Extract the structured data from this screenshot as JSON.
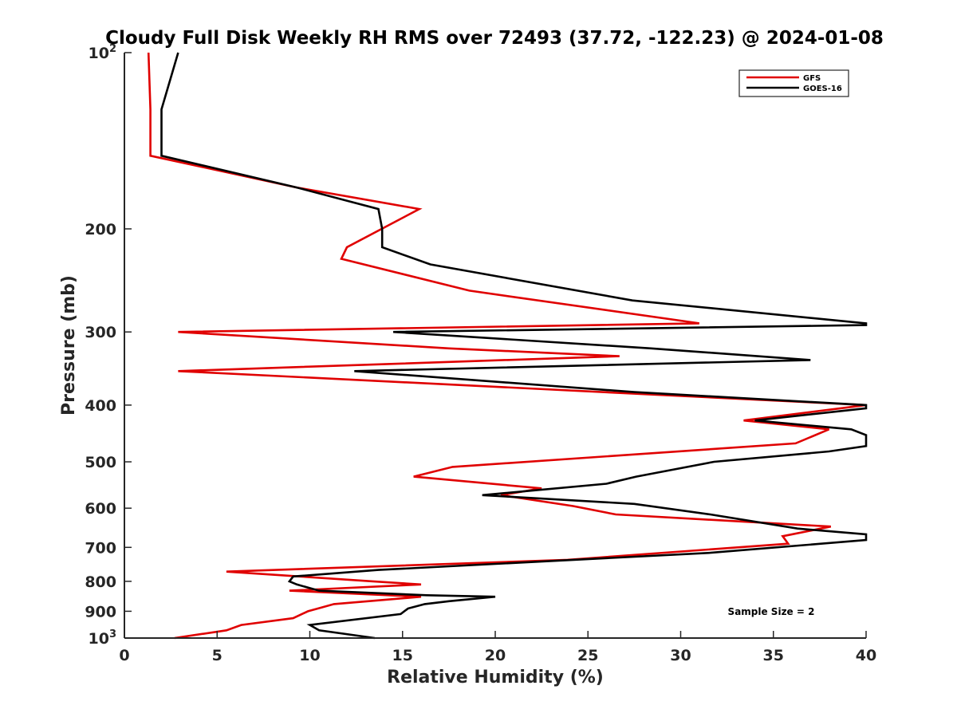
{
  "chart_data": {
    "type": "line",
    "title": "Cloudy Full Disk Weekly RH RMS over 72493 (37.72, -122.23) @ 2024-01-08",
    "xlabel": "Relative Humidity (%)",
    "ylabel": "Pressure (mb)",
    "xlim": [
      0,
      40
    ],
    "ylim": [
      100,
      1000
    ],
    "y_scale": "log",
    "y_reversed": true,
    "grid": false,
    "legend_position": "top-right",
    "x_ticks": [
      "0",
      "5",
      "10",
      "15",
      "20",
      "25",
      "30",
      "35",
      "40"
    ],
    "y_ticks": [
      {
        "value": 100,
        "base": "10",
        "exp": "2"
      },
      {
        "value": 200,
        "label": "200"
      },
      {
        "value": 300,
        "label": "300"
      },
      {
        "value": 400,
        "label": "400"
      },
      {
        "value": 500,
        "label": "500"
      },
      {
        "value": 600,
        "label": "600"
      },
      {
        "value": 700,
        "label": "700"
      },
      {
        "value": 800,
        "label": "800"
      },
      {
        "value": 900,
        "label": "900"
      },
      {
        "value": 1000,
        "base": "10",
        "exp": "3"
      }
    ],
    "annotation": "Sample Size = 2",
    "series": [
      {
        "name": "GFS",
        "color": "#e00000",
        "points": [
          [
            1.3,
            100
          ],
          [
            1.4,
            125
          ],
          [
            1.4,
            150
          ],
          [
            9.3,
            170
          ],
          [
            15.9,
            185
          ],
          [
            12.0,
            215
          ],
          [
            11.7,
            225
          ],
          [
            18.6,
            255
          ],
          [
            31.0,
            290
          ],
          [
            2.9,
            300
          ],
          [
            17.5,
            320
          ],
          [
            26.7,
            330
          ],
          [
            2.9,
            350
          ],
          [
            40.0,
            400
          ],
          [
            33.4,
            425
          ],
          [
            38.0,
            440
          ],
          [
            36.2,
            465
          ],
          [
            17.7,
            510
          ],
          [
            15.6,
            530
          ],
          [
            22.5,
            555
          ],
          [
            20.3,
            570
          ],
          [
            24.2,
            595
          ],
          [
            26.5,
            615
          ],
          [
            38.1,
            645
          ],
          [
            35.5,
            670
          ],
          [
            35.8,
            690
          ],
          [
            23.9,
            735
          ],
          [
            5.5,
            770
          ],
          [
            13.4,
            800
          ],
          [
            16.0,
            810
          ],
          [
            8.9,
            830
          ],
          [
            16.0,
            850
          ],
          [
            11.3,
            875
          ],
          [
            9.9,
            900
          ],
          [
            9.1,
            925
          ],
          [
            6.3,
            950
          ],
          [
            5.5,
            970
          ],
          [
            2.7,
            1000
          ]
        ]
      },
      {
        "name": "GOES-16",
        "color": "#000000",
        "points": [
          [
            2.9,
            100
          ],
          [
            2.0,
            125
          ],
          [
            2.0,
            150
          ],
          [
            9.3,
            170
          ],
          [
            13.7,
            185
          ],
          [
            13.9,
            200
          ],
          [
            13.9,
            215
          ],
          [
            16.5,
            230
          ],
          [
            27.4,
            265
          ],
          [
            40.0,
            290
          ],
          [
            40.0,
            292
          ],
          [
            14.5,
            300
          ],
          [
            28.4,
            320
          ],
          [
            37.0,
            335
          ],
          [
            12.4,
            350
          ],
          [
            27.5,
            380
          ],
          [
            40.0,
            400
          ],
          [
            40.0,
            405
          ],
          [
            34.0,
            425
          ],
          [
            39.2,
            440
          ],
          [
            40.0,
            450
          ],
          [
            40.0,
            470
          ],
          [
            38.0,
            480
          ],
          [
            31.8,
            500
          ],
          [
            27.6,
            530
          ],
          [
            26.0,
            545
          ],
          [
            19.3,
            570
          ],
          [
            27.5,
            590
          ],
          [
            31.6,
            615
          ],
          [
            36.3,
            650
          ],
          [
            40.0,
            665
          ],
          [
            40.0,
            680
          ],
          [
            31.6,
            715
          ],
          [
            13.7,
            765
          ],
          [
            9.1,
            785
          ],
          [
            8.9,
            800
          ],
          [
            9.3,
            810
          ],
          [
            10.5,
            830
          ],
          [
            16.3,
            845
          ],
          [
            20.0,
            850
          ],
          [
            17.5,
            865
          ],
          [
            16.2,
            875
          ],
          [
            15.3,
            890
          ],
          [
            14.9,
            910
          ],
          [
            10.0,
            950
          ],
          [
            10.5,
            970
          ],
          [
            13.5,
            1000
          ]
        ]
      }
    ]
  }
}
